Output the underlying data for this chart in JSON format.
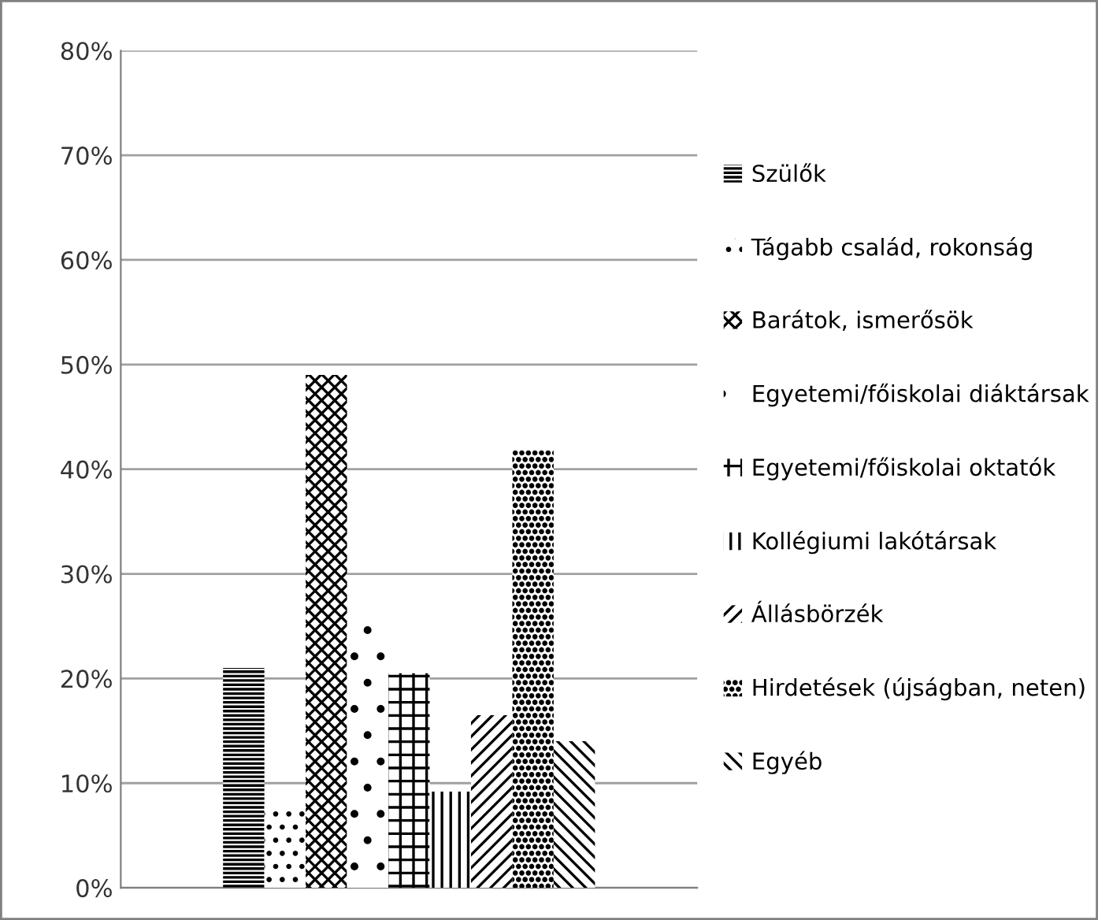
{
  "chart_data": {
    "type": "bar",
    "categories": [
      null
    ],
    "series": [
      {
        "name": "Szülők",
        "color": "#000000",
        "values": [
          21
        ]
      },
      {
        "name": "Tágabb család, rokonság",
        "color": "#000000",
        "values": [
          7.8
        ]
      },
      {
        "name": "Barátok, ismerősök",
        "color": "#000000",
        "values": [
          49
        ]
      },
      {
        "name": "Egyetemi/főiskolai diáktársak",
        "color": "#000000",
        "values": [
          25
        ]
      },
      {
        "name": "Egyetemi/főiskolai oktatók",
        "color": "#000000",
        "values": [
          20.5
        ]
      },
      {
        "name": "Kollégiumi lakótársak",
        "color": "#000000",
        "values": [
          9.2
        ]
      },
      {
        "name": "Állásbörzék",
        "color": "#000000",
        "values": [
          16.5
        ]
      },
      {
        "name": "Hirdetések (újságban, neten)",
        "color": "#000000",
        "values": [
          41.8
        ]
      },
      {
        "name": "Egyéb",
        "color": "#000000",
        "values": [
          14
        ]
      }
    ],
    "ylim": [
      0,
      80
    ],
    "yticks": [
      {
        "value": 0,
        "label": "0%"
      },
      {
        "value": 10,
        "label": "10%"
      },
      {
        "value": 20,
        "label": "20%"
      },
      {
        "value": 30,
        "label": "30%"
      },
      {
        "value": 40,
        "label": "40%"
      },
      {
        "value": 50,
        "label": "50%"
      },
      {
        "value": 60,
        "label": "60%"
      },
      {
        "value": 70,
        "label": "70%"
      },
      {
        "value": 80,
        "label": "80%"
      }
    ],
    "grid": "y",
    "legend": "right",
    "tick_labels": "y"
  }
}
